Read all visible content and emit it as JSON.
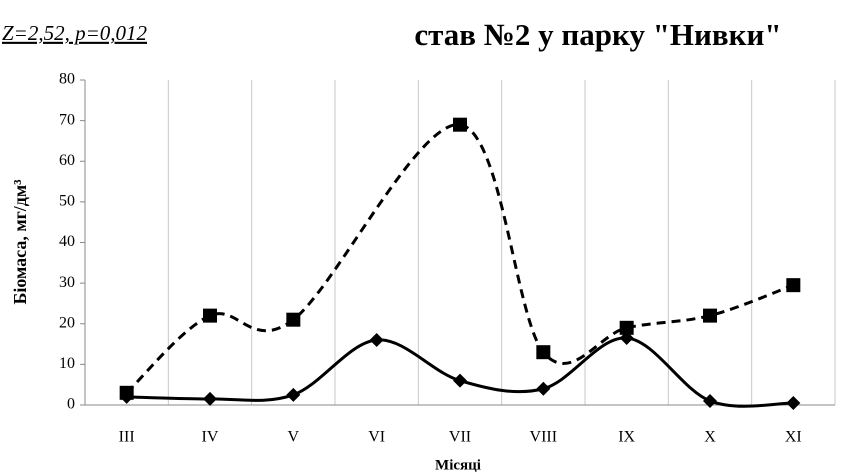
{
  "chart_data": {
    "type": "line",
    "title": "став №2 у парку \"Нивки\"",
    "annotation": "Z=2,52, p=0,012",
    "x_label": "Місяці",
    "y_label": "Біомаса, мг/дм³",
    "categories": [
      "III",
      "IV",
      "V",
      "VI",
      "VII",
      "VIII",
      "IX",
      "X",
      "XI"
    ],
    "series": [
      {
        "color": "#000000",
        "dash": true,
        "marker": "square",
        "values": [
          3,
          22,
          21,
          null,
          69,
          13,
          19,
          22,
          29.5
        ]
      },
      {
        "color": "#000000",
        "dash": false,
        "marker": "diamond",
        "values": [
          2,
          1.5,
          2.5,
          16,
          6,
          4,
          16.5,
          1,
          0.5
        ]
      }
    ],
    "connect_gaps": true,
    "smooth": true,
    "ylim": [
      0,
      80
    ],
    "yticks": [
      0,
      10,
      20,
      30,
      40,
      50,
      60,
      70,
      80
    ],
    "grid": true
  }
}
